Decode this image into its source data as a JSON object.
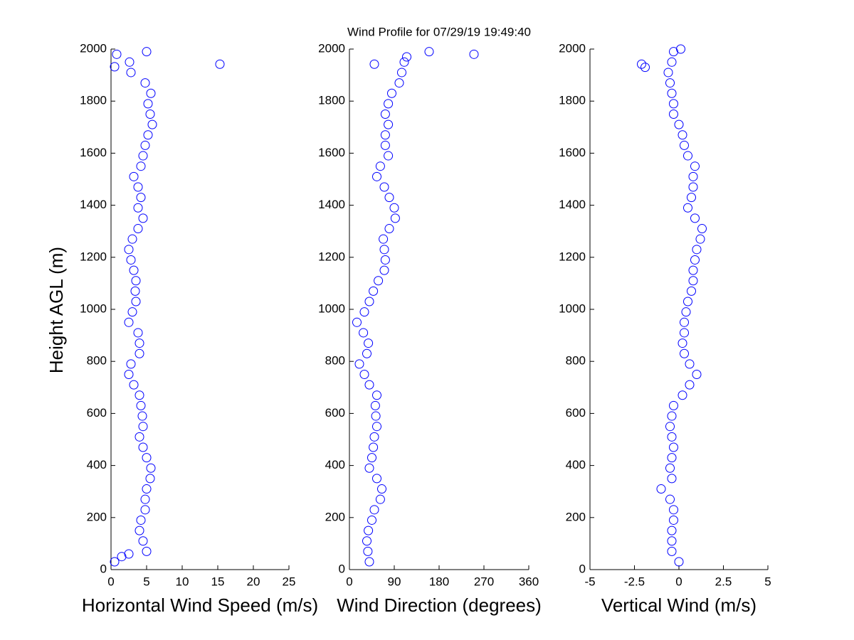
{
  "chart_data": [
    {
      "type": "scatter",
      "title": "Wind Profile for  07/29/19 19:49:40",
      "xlabel": "Horizontal Wind Speed (m/s)",
      "ylabel": "Height AGL (m)",
      "color": "#0000ff",
      "xlim": [
        0,
        25
      ],
      "xticks": [
        0,
        5,
        10,
        15,
        20,
        25
      ],
      "ylim": [
        0,
        2000
      ],
      "yticks": [
        0,
        200,
        400,
        600,
        800,
        1000,
        1200,
        1400,
        1600,
        1800,
        2000
      ],
      "x": [
        0.5,
        5,
        4.5,
        4,
        4.2,
        4.8,
        4.8,
        5,
        5.5,
        5.6,
        5,
        4.5,
        4,
        4.5,
        4.4,
        4.2,
        4,
        3.2,
        2.5,
        2.8,
        4,
        4,
        3.8,
        2.5,
        3,
        3.5,
        3.4,
        3.5,
        3.2,
        2.8,
        2.5,
        3,
        3.8,
        4.5,
        3.8,
        4.2,
        3.8,
        3.2,
        4.2,
        4.5,
        4.8,
        5.2,
        5.8,
        5.5,
        5.2,
        5.6,
        4.8,
        2.8,
        2.6,
        5,
        15.3,
        0.5,
        0.8,
        1.5,
        2.5
      ],
      "y": [
        30,
        70,
        110,
        150,
        190,
        230,
        270,
        310,
        350,
        390,
        430,
        470,
        510,
        550,
        590,
        630,
        670,
        710,
        750,
        790,
        830,
        870,
        910,
        950,
        990,
        1030,
        1070,
        1110,
        1150,
        1190,
        1230,
        1270,
        1310,
        1350,
        1390,
        1430,
        1470,
        1510,
        1550,
        1590,
        1630,
        1670,
        1710,
        1750,
        1790,
        1830,
        1870,
        1910,
        1950,
        1990,
        1942,
        1932,
        1980,
        50,
        60
      ]
    },
    {
      "type": "scatter",
      "xlabel": "Wind Direction (degrees)",
      "color": "#0000ff",
      "xlim": [
        0,
        360
      ],
      "xticks": [
        0,
        90,
        180,
        270,
        360
      ],
      "ylim": [
        0,
        2000
      ],
      "yticks": [
        0,
        200,
        400,
        600,
        800,
        1000,
        1200,
        1400,
        1600,
        1800,
        2000
      ],
      "x": [
        40,
        37,
        35,
        38,
        45,
        50,
        62,
        65,
        55,
        40,
        45,
        48,
        50,
        55,
        53,
        52,
        55,
        40,
        30,
        20,
        35,
        38,
        28,
        15,
        30,
        40,
        48,
        58,
        70,
        72,
        70,
        68,
        80,
        92,
        90,
        80,
        70,
        55,
        62,
        78,
        72,
        72,
        78,
        72,
        78,
        85,
        100,
        105,
        110,
        160,
        250,
        115,
        50
      ],
      "y": [
        30,
        70,
        110,
        150,
        190,
        230,
        270,
        310,
        350,
        390,
        430,
        470,
        510,
        550,
        590,
        630,
        670,
        710,
        750,
        790,
        830,
        870,
        910,
        950,
        990,
        1030,
        1070,
        1110,
        1150,
        1190,
        1230,
        1270,
        1310,
        1350,
        1390,
        1430,
        1470,
        1510,
        1550,
        1590,
        1630,
        1670,
        1710,
        1750,
        1790,
        1830,
        1870,
        1910,
        1950,
        1990,
        1980,
        1970,
        1942
      ]
    },
    {
      "type": "scatter",
      "xlabel": "Vertical Wind (m/s)",
      "color": "#0000ff",
      "xlim": [
        -5,
        5
      ],
      "xticks": [
        -5,
        -2.5,
        0,
        2.5,
        5
      ],
      "ylim": [
        0,
        2000
      ],
      "yticks": [
        0,
        200,
        400,
        600,
        800,
        1000,
        1200,
        1400,
        1600,
        1800,
        2000
      ],
      "x": [
        0,
        -0.4,
        -0.4,
        -0.4,
        -0.3,
        -0.3,
        -0.5,
        -1,
        -0.4,
        -0.5,
        -0.4,
        -0.3,
        -0.4,
        -0.5,
        -0.4,
        -0.3,
        0.2,
        0.6,
        1,
        0.6,
        0.3,
        0.2,
        0.3,
        0.3,
        0.4,
        0.5,
        0.7,
        0.8,
        0.8,
        0.9,
        1,
        1.2,
        1.3,
        0.9,
        0.5,
        0.7,
        0.8,
        0.8,
        0.9,
        0.5,
        0.3,
        0.2,
        0,
        -0.3,
        -0.3,
        -0.4,
        -0.5,
        -0.6,
        -0.4,
        -0.3,
        -2.1,
        -1.9,
        0.1
      ],
      "y": [
        30,
        70,
        110,
        150,
        190,
        230,
        270,
        310,
        350,
        390,
        430,
        470,
        510,
        550,
        590,
        630,
        670,
        710,
        750,
        790,
        830,
        870,
        910,
        950,
        990,
        1030,
        1070,
        1110,
        1150,
        1190,
        1230,
        1270,
        1310,
        1350,
        1390,
        1430,
        1470,
        1510,
        1550,
        1590,
        1630,
        1670,
        1710,
        1750,
        1790,
        1830,
        1870,
        1910,
        1950,
        1990,
        1942,
        1930,
        2000
      ]
    }
  ]
}
